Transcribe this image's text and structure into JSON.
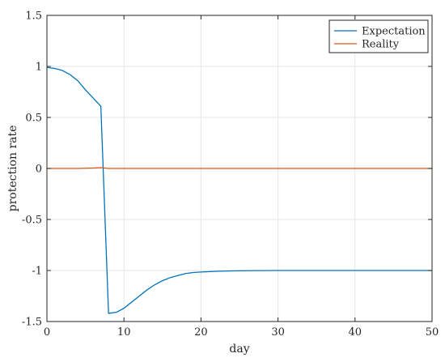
{
  "chart_data": {
    "type": "line",
    "xlabel": "day",
    "ylabel": "protection rate",
    "xlim": [
      0,
      50
    ],
    "ylim": [
      -1.5,
      1.5
    ],
    "xticks": [
      0,
      10,
      20,
      30,
      40,
      50
    ],
    "yticks": [
      -1.5,
      -1,
      -0.5,
      0,
      0.5,
      1,
      1.5
    ],
    "xtick_labels": [
      "0",
      "10",
      "20",
      "30",
      "40",
      "50"
    ],
    "ytick_labels": [
      "-1.5",
      "-1",
      "-0.5",
      "0",
      "0.5",
      "1",
      "1.5"
    ],
    "grid": true,
    "legend_position": "top-right",
    "series": [
      {
        "name": "Expectation",
        "color": "#0072BD",
        "x": [
          0,
          1,
          2,
          3,
          4,
          5,
          6,
          7,
          8,
          9,
          10,
          11,
          12,
          13,
          14,
          15,
          16,
          17,
          18,
          19,
          20,
          22,
          24,
          26,
          28,
          30,
          35,
          40,
          45,
          50
        ],
        "y": [
          0.99,
          0.98,
          0.96,
          0.92,
          0.86,
          0.77,
          0.69,
          0.61,
          -1.42,
          -1.41,
          -1.37,
          -1.31,
          -1.25,
          -1.19,
          -1.14,
          -1.1,
          -1.07,
          -1.05,
          -1.03,
          -1.02,
          -1.015,
          -1.008,
          -1.004,
          -1.002,
          -1.001,
          -1.0,
          -1.0,
          -1.0,
          -1.0,
          -1.0
        ]
      },
      {
        "name": "Reality",
        "color": "#D95319",
        "x": [
          0,
          2,
          4,
          6,
          7,
          8,
          10,
          20,
          30,
          40,
          50
        ],
        "y": [
          0.0,
          0.0,
          0.0,
          0.004,
          0.008,
          0.0,
          0.0,
          0.0,
          0.0,
          0.0,
          0.0
        ]
      }
    ]
  }
}
